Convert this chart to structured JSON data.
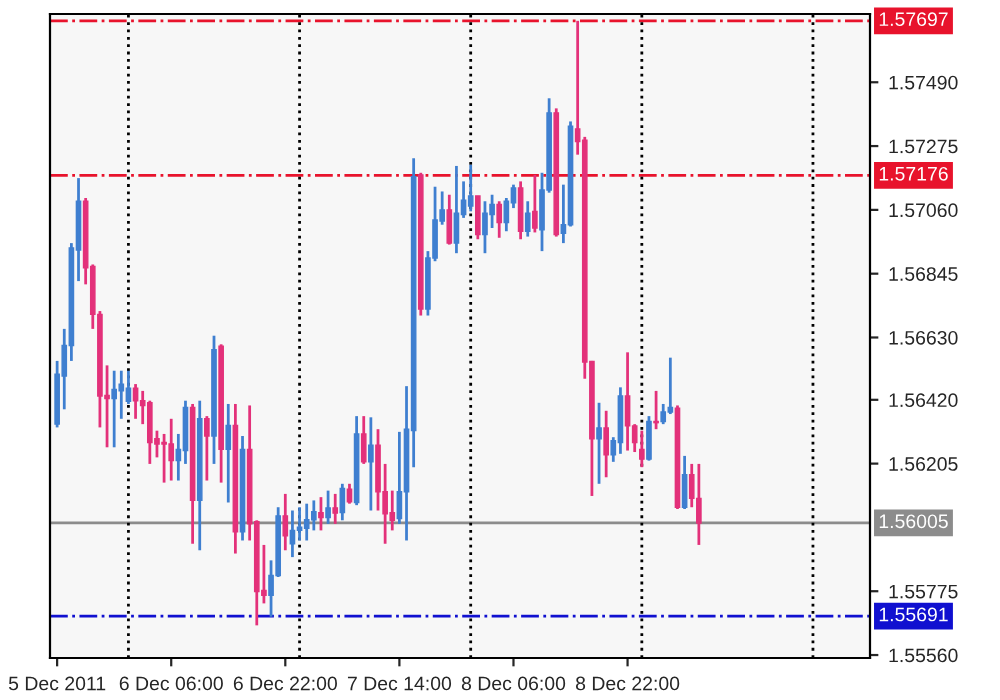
{
  "chart_data": {
    "type": "candlestick",
    "x": [
      "2011-12-05T14:00",
      "2011-12-05T15:00",
      "2011-12-05T16:00",
      "2011-12-05T17:00",
      "2011-12-05T18:00",
      "2011-12-05T19:00",
      "2011-12-05T20:00",
      "2011-12-05T21:00",
      "2011-12-05T22:00",
      "2011-12-05T23:00",
      "2011-12-06T00:00",
      "2011-12-06T01:00",
      "2011-12-06T02:00",
      "2011-12-06T03:00",
      "2011-12-06T04:00",
      "2011-12-06T05:00",
      "2011-12-06T06:00",
      "2011-12-06T07:00",
      "2011-12-06T08:00",
      "2011-12-06T09:00",
      "2011-12-06T10:00",
      "2011-12-06T11:00",
      "2011-12-06T12:00",
      "2011-12-06T13:00",
      "2011-12-06T14:00",
      "2011-12-06T15:00",
      "2011-12-06T16:00",
      "2011-12-06T17:00",
      "2011-12-06T18:00",
      "2011-12-06T19:00",
      "2011-12-06T20:00",
      "2011-12-06T21:00",
      "2011-12-06T22:00",
      "2011-12-06T23:00",
      "2011-12-07T00:00",
      "2011-12-07T01:00",
      "2011-12-07T02:00",
      "2011-12-07T03:00",
      "2011-12-07T04:00",
      "2011-12-07T05:00",
      "2011-12-07T06:00",
      "2011-12-07T07:00",
      "2011-12-07T08:00",
      "2011-12-07T09:00",
      "2011-12-07T10:00",
      "2011-12-07T11:00",
      "2011-12-07T12:00",
      "2011-12-07T13:00",
      "2011-12-07T14:00",
      "2011-12-07T15:00",
      "2011-12-07T16:00",
      "2011-12-07T17:00",
      "2011-12-07T18:00",
      "2011-12-07T19:00",
      "2011-12-07T20:00",
      "2011-12-07T21:00",
      "2011-12-07T22:00",
      "2011-12-07T23:00",
      "2011-12-08T00:00",
      "2011-12-08T01:00",
      "2011-12-08T02:00",
      "2011-12-08T03:00",
      "2011-12-08T04:00",
      "2011-12-08T05:00",
      "2011-12-08T06:00",
      "2011-12-08T07:00",
      "2011-12-08T08:00",
      "2011-12-08T09:00",
      "2011-12-08T10:00",
      "2011-12-08T11:00",
      "2011-12-08T12:00",
      "2011-12-08T13:00",
      "2011-12-08T14:00",
      "2011-12-08T15:00",
      "2011-12-08T16:00",
      "2011-12-08T17:00",
      "2011-12-08T18:00",
      "2011-12-08T19:00",
      "2011-12-08T20:00",
      "2011-12-08T21:00",
      "2011-12-08T22:00",
      "2011-12-08T23:00",
      "2011-12-09T00:00",
      "2011-12-09T01:00",
      "2011-12-09T02:00",
      "2011-12-09T03:00",
      "2011-12-09T04:00",
      "2011-12-09T05:00",
      "2011-12-09T06:00",
      "2011-12-09T07:00",
      "2011-12-09T08:00"
    ],
    "ohlc": [
      [
        1.56338,
        1.56551,
        1.56327,
        1.56506
      ],
      [
        1.565,
        1.56659,
        1.56388,
        1.56603
      ],
      [
        1.56603,
        1.56948,
        1.56551,
        1.56932
      ],
      [
        1.56925,
        1.57167,
        1.5682,
        1.57089
      ],
      [
        1.57089,
        1.571,
        1.56809,
        1.56865
      ],
      [
        1.56869,
        1.56876,
        1.56659,
        1.56708
      ],
      [
        1.56708,
        1.56719,
        1.56327,
        1.56433
      ],
      [
        1.56435,
        1.56536,
        1.5626,
        1.56424
      ],
      [
        1.56424,
        1.56518,
        1.5626,
        1.56455
      ],
      [
        1.5645,
        1.56518,
        1.56356,
        1.56473
      ],
      [
        1.56415,
        1.56518,
        1.56406,
        1.56459
      ],
      [
        1.56459,
        1.56473,
        1.56356,
        1.56417
      ],
      [
        1.56417,
        1.5645,
        1.56338,
        1.56401
      ],
      [
        1.5641,
        1.56417,
        1.56204,
        1.56276
      ],
      [
        1.56289,
        1.56316,
        1.56226,
        1.56271
      ],
      [
        1.56276,
        1.56305,
        1.56141,
        1.56271
      ],
      [
        1.56271,
        1.56356,
        1.56148,
        1.56215
      ],
      [
        1.56215,
        1.56305,
        1.56148,
        1.56253
      ],
      [
        1.56249,
        1.56417,
        1.56204,
        1.56394
      ],
      [
        1.56394,
        1.56406,
        1.55935,
        1.56081
      ],
      [
        1.56081,
        1.56417,
        1.55913,
        1.56356
      ],
      [
        1.56356,
        1.56365,
        1.56148,
        1.56298
      ],
      [
        1.56298,
        1.56636,
        1.56204,
        1.56589
      ],
      [
        1.56601,
        1.56607,
        1.56141,
        1.56253
      ],
      [
        1.56253,
        1.56406,
        1.56074,
        1.56334
      ],
      [
        1.56334,
        1.56406,
        1.55902,
        1.55975
      ],
      [
        1.55975,
        1.56298,
        1.55946,
        1.56253
      ],
      [
        1.56253,
        1.56401,
        1.55946,
        1.56002
      ],
      [
        1.56009,
        1.56014,
        1.5566,
        1.55774
      ],
      [
        1.55778,
        1.55931,
        1.55734,
        1.55761
      ],
      [
        1.55761,
        1.55879,
        1.55689,
        1.55828
      ],
      [
        1.55828,
        1.56058,
        1.55823,
        1.56029
      ],
      [
        1.56029,
        1.56103,
        1.55913,
        1.55962
      ],
      [
        1.55935,
        1.56047,
        1.5589,
        1.5598
      ],
      [
        1.5598,
        1.56058,
        1.55946,
        1.55991
      ],
      [
        1.55987,
        1.5607,
        1.55946,
        1.56016
      ],
      [
        1.56016,
        1.56081,
        1.5598,
        1.56043
      ],
      [
        1.5604,
        1.56092,
        1.5598,
        1.56023
      ],
      [
        1.56023,
        1.56114,
        1.56002,
        1.56056
      ],
      [
        1.56056,
        1.56103,
        1.56002,
        1.56038
      ],
      [
        1.5604,
        1.56137,
        1.56014,
        1.56121
      ],
      [
        1.56119,
        1.56137,
        1.5607,
        1.56076
      ],
      [
        1.56074,
        1.56365,
        1.56065,
        1.56305
      ],
      [
        1.56305,
        1.56365,
        1.56204,
        1.56211
      ],
      [
        1.56211,
        1.56361,
        1.56047,
        1.56267
      ],
      [
        1.56267,
        1.56321,
        1.56047,
        1.5611
      ],
      [
        1.5611,
        1.56204,
        1.55935,
        1.56036
      ],
      [
        1.5604,
        1.56114,
        1.5598,
        1.56014
      ],
      [
        1.5602,
        1.56312,
        1.56002,
        1.5611
      ],
      [
        1.5611,
        1.56466,
        1.55946,
        1.56321
      ],
      [
        1.56316,
        1.57234,
        1.56193,
        1.57172
      ],
      [
        1.57178,
        1.57185,
        1.56704,
        1.56726
      ],
      [
        1.56726,
        1.56921,
        1.56704,
        1.56898
      ],
      [
        1.56898,
        1.57138,
        1.56887,
        1.57026
      ],
      [
        1.57022,
        1.57122,
        1.5701,
        1.5706
      ],
      [
        1.5706,
        1.57111,
        1.56943,
        1.56948
      ],
      [
        1.56948,
        1.57208,
        1.56914,
        1.57049
      ],
      [
        1.57044,
        1.57156,
        1.57033,
        1.57093
      ],
      [
        1.57073,
        1.57212,
        1.57055,
        1.57107
      ],
      [
        1.57107,
        1.57107,
        1.56961,
        1.56977
      ],
      [
        1.56977,
        1.57089,
        1.56914,
        1.57049
      ],
      [
        1.57044,
        1.57111,
        1.56999,
        1.57078
      ],
      [
        1.57078,
        1.57089,
        1.56966,
        1.57017
      ],
      [
        1.57017,
        1.571,
        1.56988,
        1.57089
      ],
      [
        1.57084,
        1.57145,
        1.57066,
        1.57134
      ],
      [
        1.57134,
        1.57156,
        1.56961,
        1.56988
      ],
      [
        1.56988,
        1.57089,
        1.5697,
        1.57049
      ],
      [
        1.57055,
        1.57178,
        1.56984,
        1.56999
      ],
      [
        1.56993,
        1.57185,
        1.56921,
        1.57127
      ],
      [
        1.57127,
        1.57436,
        1.57118,
        1.57387
      ],
      [
        1.57387,
        1.57402,
        1.5697,
        1.56977
      ],
      [
        1.56981,
        1.57145,
        1.56948,
        1.5701
      ],
      [
        1.5701,
        1.57358,
        1.57004,
        1.57342
      ],
      [
        1.57333,
        1.57697,
        1.57246,
        1.5729
      ],
      [
        1.57295,
        1.57306,
        1.56491,
        1.56547
      ],
      [
        1.56549,
        1.56551,
        1.56096,
        1.56289
      ],
      [
        1.56289,
        1.5641,
        1.56137,
        1.56325
      ],
      [
        1.56325,
        1.56383,
        1.56159,
        1.56235
      ],
      [
        1.56235,
        1.56294,
        1.56211,
        1.56282
      ],
      [
        1.56276,
        1.56462,
        1.56238,
        1.56433
      ],
      [
        1.56433,
        1.5658,
        1.56249,
        1.56332
      ],
      [
        1.56332,
        1.56338,
        1.56244,
        1.56276
      ],
      [
        1.56253,
        1.56316,
        1.56193,
        1.5622
      ],
      [
        1.5622,
        1.56365,
        1.56215,
        1.56347
      ],
      [
        1.56347,
        1.5645,
        1.56321,
        1.56343
      ],
      [
        1.56347,
        1.56406,
        1.56338,
        1.56379
      ],
      [
        1.56379,
        1.56562,
        1.56372,
        1.56394
      ],
      [
        1.56392,
        1.56401,
        1.56052,
        1.56058
      ],
      [
        1.56058,
        1.56231,
        1.56052,
        1.56168
      ],
      [
        1.56168,
        1.56204,
        1.56058,
        1.56088
      ],
      [
        1.56088,
        1.56204,
        1.55931,
        1.56005
      ]
    ],
    "colors": [
      "#3f7fd0",
      "#3f7fd0",
      "#3f7fd0",
      "#3f7fd0",
      "#e3317a",
      "#e3317a",
      "#e3317a",
      "#e3317a",
      "#3f7fd0",
      "#3f7fd0",
      "#3f7fd0",
      "#e3317a",
      "#e3317a",
      "#e3317a",
      "#e3317a",
      "#e3317a",
      "#e3317a",
      "#3f7fd0",
      "#3f7fd0",
      "#e3317a",
      "#3f7fd0",
      "#e3317a",
      "#3f7fd0",
      "#e3317a",
      "#3f7fd0",
      "#e3317a",
      "#3f7fd0",
      "#e3317a",
      "#e3317a",
      "#e3317a",
      "#3f7fd0",
      "#3f7fd0",
      "#e3317a",
      "#3f7fd0",
      "#3f7fd0",
      "#3f7fd0",
      "#3f7fd0",
      "#e3317a",
      "#3f7fd0",
      "#e3317a",
      "#3f7fd0",
      "#e3317a",
      "#3f7fd0",
      "#e3317a",
      "#3f7fd0",
      "#e3317a",
      "#e3317a",
      "#e3317a",
      "#3f7fd0",
      "#3f7fd0",
      "#3f7fd0",
      "#e3317a",
      "#3f7fd0",
      "#3f7fd0",
      "#3f7fd0",
      "#e3317a",
      "#3f7fd0",
      "#3f7fd0",
      "#3f7fd0",
      "#e3317a",
      "#3f7fd0",
      "#3f7fd0",
      "#e3317a",
      "#3f7fd0",
      "#3f7fd0",
      "#e3317a",
      "#3f7fd0",
      "#e3317a",
      "#3f7fd0",
      "#3f7fd0",
      "#e3317a",
      "#3f7fd0",
      "#3f7fd0",
      "#e3317a",
      "#e3317a",
      "#e3317a",
      "#3f7fd0",
      "#e3317a",
      "#3f7fd0",
      "#3f7fd0",
      "#e3317a",
      "#e3317a",
      "#e3317a",
      "#3f7fd0",
      "#e3317a",
      "#3f7fd0",
      "#3f7fd0",
      "#e3317a",
      "#3f7fd0",
      "#e3317a",
      "#e3317a"
    ],
    "xlim": [
      "2011-12-05T13:00",
      "2011-12-10T08:00"
    ],
    "xticks": [
      {
        "value": "2011-12-05T14:00",
        "label": "5 Dec 2011"
      },
      {
        "value": "2011-12-06T06:00",
        "label": "6 Dec 06:00"
      },
      {
        "value": "2011-12-06T22:00",
        "label": "6 Dec 22:00"
      },
      {
        "value": "2011-12-07T14:00",
        "label": "7 Dec 14:00"
      },
      {
        "value": "2011-12-08T06:00",
        "label": "8 Dec 06:00"
      },
      {
        "value": "2011-12-08T22:00",
        "label": "8 Dec 22:00"
      }
    ],
    "ylim": [
      1.5555,
      1.5772
    ],
    "yticks": [
      {
        "value": 1.5556,
        "label": "1.55560"
      },
      {
        "value": 1.55775,
        "label": "1.55775"
      },
      {
        "value": 1.56205,
        "label": "1.56205"
      },
      {
        "value": 1.5642,
        "label": "1.56420"
      },
      {
        "value": 1.5663,
        "label": "1.56630"
      },
      {
        "value": 1.56845,
        "label": "1.56845"
      },
      {
        "value": 1.5706,
        "label": "1.57060"
      },
      {
        "value": 1.57275,
        "label": "1.57275"
      },
      {
        "value": 1.5749,
        "label": "1.57490"
      }
    ],
    "ref_lines": [
      {
        "axis": "y",
        "value": 1.57697,
        "label": "1.57697",
        "color": "#e8132c",
        "line_style": "dashdot"
      },
      {
        "axis": "y",
        "value": 1.57176,
        "label": "1.57176",
        "color": "#e8132c",
        "line_style": "dashdot"
      },
      {
        "axis": "y",
        "value": 1.56005,
        "label": "1.56005",
        "color": "#8c8c8c",
        "line_style": "solid"
      },
      {
        "axis": "y",
        "value": 1.55691,
        "label": "1.55691",
        "color": "#1010d0",
        "line_style": "dashdot"
      },
      {
        "axis": "x",
        "value": "2011-12-06T00:00",
        "color": "#000000",
        "line_style": "dotted"
      },
      {
        "axis": "x",
        "value": "2011-12-07T00:00",
        "color": "#000000",
        "line_style": "dotted"
      },
      {
        "axis": "x",
        "value": "2011-12-08T00:00",
        "color": "#000000",
        "line_style": "dotted"
      },
      {
        "axis": "x",
        "value": "2011-12-09T00:00",
        "color": "#000000",
        "line_style": "dotted"
      },
      {
        "axis": "x",
        "value": "2011-12-10T00:00",
        "color": "#000000",
        "line_style": "dotted"
      }
    ],
    "grid": false
  }
}
